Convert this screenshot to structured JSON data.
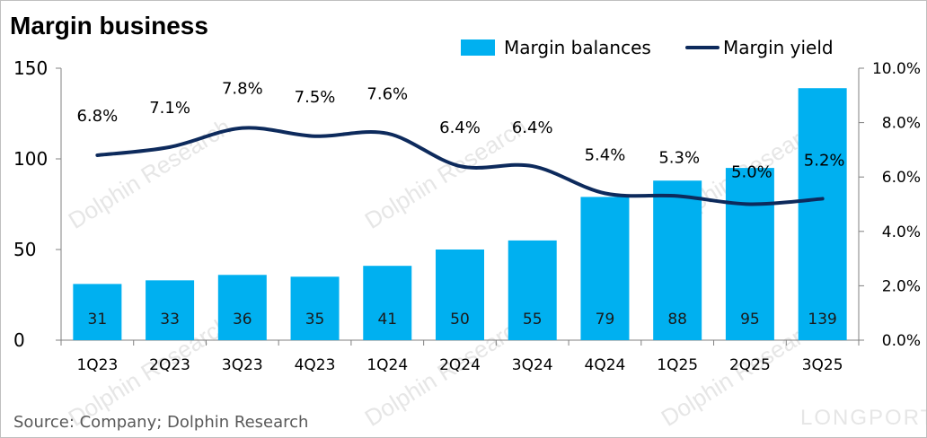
{
  "title": "Margin business",
  "source": "Source: Company; Dolphin Research",
  "watermark": {
    "text": "Dolphin Research",
    "brand": "LONGPORT"
  },
  "colors": {
    "bar": "#00b0f0",
    "line": "#0d2a5c",
    "axis": "#808080",
    "bar_label": "#1a1a1a"
  },
  "chart_data": {
    "type": "bar",
    "categories": [
      "1Q23",
      "2Q23",
      "3Q23",
      "4Q23",
      "1Q24",
      "2Q24",
      "3Q24",
      "4Q24",
      "1Q25",
      "2Q25",
      "3Q25"
    ],
    "series": [
      {
        "name": "Margin balances",
        "type": "bar",
        "axis": "left",
        "values": [
          31,
          33,
          36,
          35,
          41,
          50,
          55,
          79,
          88,
          95,
          139
        ],
        "labels": [
          "31",
          "33",
          "36",
          "35",
          "41",
          "50",
          "55",
          "79",
          "88",
          "95",
          "139"
        ]
      },
      {
        "name": "Margin yield",
        "type": "line",
        "axis": "right",
        "values": [
          6.8,
          7.1,
          7.8,
          7.5,
          7.6,
          6.4,
          6.4,
          5.4,
          5.3,
          5.0,
          5.2
        ],
        "labels": [
          "6.8%",
          "7.1%",
          "7.8%",
          "7.5%",
          "7.6%",
          "6.4%",
          "6.4%",
          "5.4%",
          "5.3%",
          "5.0%",
          "5.2%"
        ]
      }
    ],
    "y_left": {
      "min": 0,
      "max": 150,
      "ticks": [
        0,
        50,
        100,
        150
      ],
      "tick_labels": [
        "0",
        "50",
        "100",
        "150"
      ]
    },
    "y_right": {
      "min": 0,
      "max": 10,
      "ticks": [
        0,
        2,
        4,
        6,
        8,
        10
      ],
      "tick_labels": [
        "0.0%",
        "2.0%",
        "4.0%",
        "6.0%",
        "8.0%",
        "10.0%"
      ]
    },
    "legend": [
      "Margin balances",
      "Margin yield"
    ],
    "legend_position": "top-right",
    "grid": false
  }
}
